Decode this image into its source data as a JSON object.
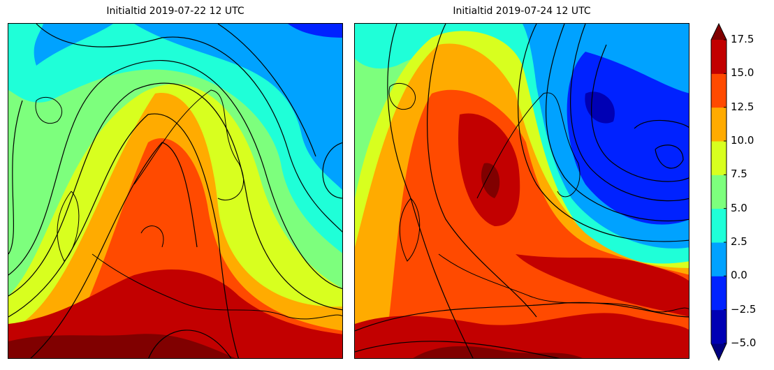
{
  "chart_data": [
    {
      "type": "heatmap",
      "title": "Initialtid 2019-07-22 12 UTC",
      "field": "filled temperature contours with black isolines over northern Europe"
    },
    {
      "type": "heatmap",
      "title": "Initialtid 2019-07-24 12 UTC",
      "field": "filled temperature contours with black isolines over northern Europe"
    }
  ],
  "colorbar": {
    "ticks": [
      "17.5",
      "15.0",
      "12.5",
      "10.0",
      "7.5",
      "5.0",
      "2.5",
      "0.0",
      "−2.5",
      "−5.0"
    ],
    "levels": [
      -5.0,
      -2.5,
      0.0,
      2.5,
      5.0,
      7.5,
      10.0,
      12.5,
      15.0,
      17.5
    ],
    "colors": [
      "#000080",
      "#0000b4",
      "#0022ff",
      "#00a2ff",
      "#1fffd8",
      "#7dff7d",
      "#d8ff1f",
      "#ffab00",
      "#ff4a00",
      "#c20000",
      "#800000"
    ],
    "extend": "both"
  }
}
